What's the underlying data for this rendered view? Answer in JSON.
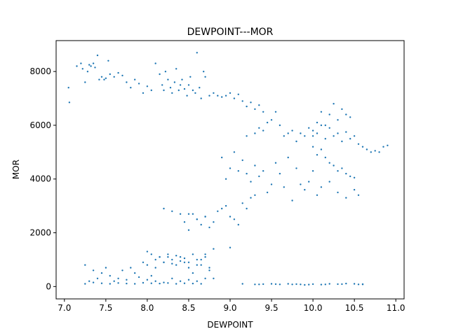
{
  "chart_data": {
    "type": "scatter",
    "title": "DEWPOINT---MOR",
    "xlabel": "DEWPOINT",
    "ylabel": "MOR",
    "xlim": [
      6.9,
      11.1
    ],
    "ylim": [
      -460,
      9150
    ],
    "xticks": [
      7.0,
      7.5,
      8.0,
      8.5,
      9.0,
      9.5,
      10.0,
      10.5,
      11.0
    ],
    "xtick_labels": [
      "7.0",
      "7.5",
      "8.0",
      "8.5",
      "9.0",
      "9.5",
      "10.0",
      "10.5",
      "11.0"
    ],
    "yticks": [
      0,
      2000,
      4000,
      6000,
      8000
    ],
    "ytick_labels": [
      "0",
      "2000",
      "4000",
      "6000",
      "8000"
    ],
    "grid": false,
    "point_color": "#1f77b4",
    "series": [
      {
        "x": [
          7.05,
          7.06,
          7.15,
          7.2,
          7.22,
          7.25,
          7.28,
          7.3,
          7.32,
          7.35,
          7.37,
          7.4,
          7.42,
          7.45,
          7.48,
          7.5,
          7.53,
          7.55,
          7.6,
          7.65,
          7.7,
          7.75,
          7.8,
          7.85,
          7.9,
          7.95,
          8.0,
          8.05,
          8.1,
          8.15,
          8.18,
          8.2,
          8.22,
          8.25,
          8.28,
          8.3,
          8.33,
          8.35,
          8.38,
          8.4,
          8.42,
          8.45,
          8.48,
          8.5,
          8.52,
          8.55,
          8.58,
          8.6,
          8.63,
          8.65,
          8.68,
          8.7,
          8.75,
          8.8,
          8.85,
          8.9,
          8.95,
          9.0,
          9.05,
          9.1,
          9.15,
          9.2,
          9.25,
          9.3,
          9.35,
          9.4,
          9.2,
          9.3,
          9.35,
          9.4,
          9.45,
          9.5,
          9.55,
          9.6,
          9.65,
          9.7,
          9.75,
          9.8,
          9.85,
          9.9,
          9.95,
          10.0,
          10.05,
          10.1,
          10.15,
          10.2,
          10.25,
          10.3,
          10.35,
          10.4,
          10.45,
          10.5,
          10.55,
          10.6,
          10.65,
          10.7,
          10.75,
          10.8,
          10.85,
          10.9,
          10.0,
          10.05,
          10.1,
          10.15,
          10.2,
          10.25,
          10.3,
          10.35,
          10.4,
          10.45,
          10.0,
          10.05,
          10.1,
          10.15,
          10.2,
          10.25,
          10.3,
          10.35,
          10.4,
          10.45,
          10.5,
          8.9,
          8.95,
          9.0,
          9.05,
          9.1,
          9.15,
          9.2,
          9.25,
          9.3,
          9.35,
          9.4,
          9.45,
          9.5,
          9.55,
          9.6,
          9.65,
          9.7,
          9.75,
          9.8,
          9.85,
          9.9,
          9.95,
          10.0,
          10.05,
          10.1,
          10.2,
          10.3,
          10.4,
          10.5,
          10.55,
          8.45,
          8.5,
          8.55,
          8.6,
          8.65,
          8.7,
          8.75,
          8.8,
          8.85,
          8.9,
          8.95,
          9.0,
          9.05,
          9.1,
          9.15,
          9.2,
          9.25,
          9.3,
          8.2,
          8.3,
          8.4,
          8.5,
          8.6,
          8.7,
          7.25,
          7.3,
          7.35,
          7.4,
          7.45,
          7.5,
          7.55,
          7.6,
          7.65,
          7.7,
          7.75,
          7.8,
          7.85,
          7.9,
          7.95,
          8.0,
          8.05,
          8.1,
          8.15,
          8.2,
          8.25,
          8.3,
          8.35,
          8.4,
          8.45,
          8.5,
          8.55,
          8.6,
          8.65,
          8.7,
          8.75,
          7.25,
          7.35,
          7.45,
          7.55,
          7.65,
          7.75,
          7.85,
          7.95,
          8.05,
          8.15,
          8.25,
          8.35,
          8.45,
          8.55,
          8.65,
          8.0,
          8.05,
          8.1,
          8.15,
          8.2,
          8.25,
          8.3,
          8.35,
          8.4,
          8.45,
          8.5,
          8.55,
          8.6,
          8.65,
          8.7,
          8.75,
          8.8,
          8.0,
          8.1,
          8.2,
          8.3,
          8.4,
          8.5,
          8.6,
          8.7,
          8.8,
          9.0,
          9.15,
          9.3,
          9.4,
          9.5,
          9.6,
          9.7,
          9.8,
          9.85,
          9.9,
          10.0,
          10.1,
          10.2,
          10.3,
          10.4,
          10.5,
          10.6,
          9.35,
          9.55,
          9.75,
          9.95,
          10.15,
          10.35,
          10.55,
          10.6
        ],
        "y": [
          7400,
          6850,
          8200,
          8300,
          8100,
          7600,
          8000,
          8250,
          8200,
          8300,
          8150,
          8600,
          7700,
          7800,
          7700,
          7750,
          8400,
          7900,
          7800,
          7950,
          7850,
          7600,
          7400,
          7700,
          7550,
          7200,
          7450,
          7300,
          8300,
          7900,
          7500,
          7300,
          8000,
          7700,
          7400,
          7200,
          7600,
          8100,
          7300,
          7500,
          7700,
          7350,
          7100,
          7500,
          7800,
          7300,
          7200,
          8700,
          7400,
          7000,
          8000,
          7800,
          7100,
          7200,
          7100,
          7050,
          7100,
          7200,
          7000,
          7150,
          6900,
          6700,
          6850,
          6600,
          6750,
          6500,
          5600,
          5700,
          5900,
          5800,
          6100,
          6200,
          6500,
          6000,
          5600,
          5700,
          5800,
          5400,
          5700,
          5600,
          5900,
          5800,
          5700,
          6000,
          5500,
          5900,
          5600,
          5700,
          5400,
          5750,
          5500,
          5600,
          5300,
          5200,
          5100,
          5000,
          5050,
          5000,
          5200,
          5250,
          5600,
          6100,
          6500,
          6000,
          6400,
          6800,
          6200,
          6600,
          6400,
          6300,
          5200,
          4900,
          5100,
          4800,
          4600,
          4500,
          4300,
          4400,
          4200,
          4100,
          4050,
          4800,
          4000,
          4400,
          5000,
          4300,
          4700,
          4200,
          3900,
          4500,
          4100,
          4300,
          3500,
          3800,
          4600,
          4200,
          3700,
          4800,
          3200,
          4400,
          3800,
          3600,
          3900,
          4300,
          3400,
          3700,
          3900,
          3500,
          3300,
          3600,
          3400,
          2400,
          2100,
          2700,
          2500,
          2300,
          2600,
          2200,
          2400,
          2800,
          2900,
          3000,
          2600,
          2500,
          2300,
          3100,
          2900,
          3300,
          3400,
          2900,
          2800,
          2700,
          2700,
          2500,
          2600,
          800,
          200,
          600,
          300,
          500,
          700,
          400,
          200,
          300,
          600,
          250,
          700,
          500,
          350,
          900,
          800,
          400,
          700,
          1100,
          900,
          1200,
          1000,
          800,
          1100,
          900,
          700,
          500,
          1000,
          800,
          1200,
          600,
          100,
          150,
          120,
          100,
          130,
          110,
          100,
          140,
          120,
          110,
          130,
          100,
          120,
          110,
          100,
          1300,
          1200,
          1000,
          1100,
          900,
          1100,
          850,
          1150,
          950,
          1050,
          900,
          1200,
          800,
          1000,
          1100,
          700,
          300,
          250,
          200,
          150,
          300,
          200,
          250,
          200,
          300,
          1400,
          1450,
          100,
          80,
          90,
          100,
          80,
          100,
          90,
          80,
          60,
          90,
          70,
          100,
          90,
          110,
          100,
          80,
          80,
          90,
          80,
          70,
          80,
          90,
          80,
          90
        ]
      }
    ]
  }
}
